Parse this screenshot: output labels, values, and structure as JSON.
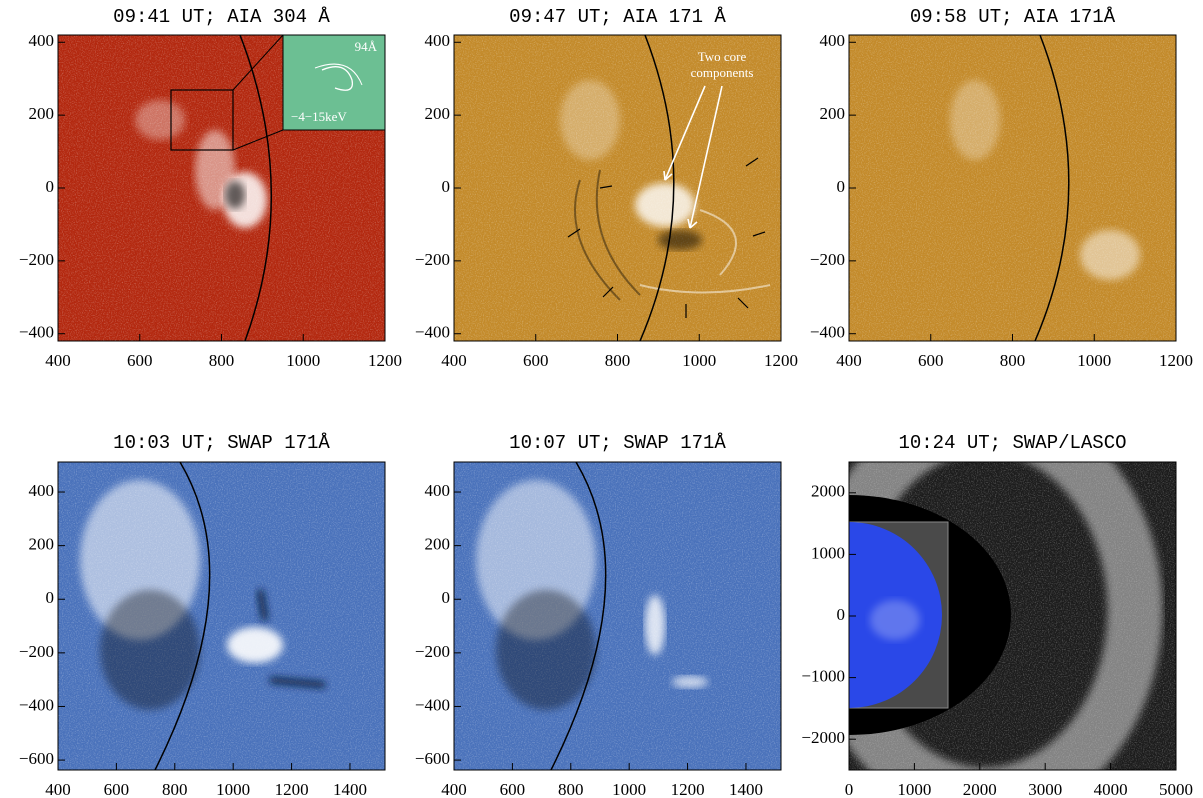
{
  "chart_data": [
    {
      "type": "image",
      "title": "09:41 UT; AIA 304 Å",
      "color": "#b3280f",
      "xlim": [
        400,
        1200
      ],
      "xticks": [
        400,
        600,
        800,
        1000,
        1200
      ],
      "ylim": [
        -420,
        420
      ],
      "yticks": [
        {
          "value": -400,
          "label": "−400"
        },
        {
          "value": -200,
          "label": "−200"
        },
        0,
        200,
        400
      ],
      "annotations": [
        "94Å",
        "−4−15keV"
      ]
    },
    {
      "type": "image",
      "title": "09:47 UT; AIA 171 Å",
      "color": "#c38a2a",
      "xlim": [
        400,
        1200
      ],
      "xticks": [
        400,
        600,
        800,
        1000,
        1200
      ],
      "ylim": [
        -420,
        420
      ],
      "yticks": [
        {
          "value": -400,
          "label": "−400"
        },
        {
          "value": -200,
          "label": "−200"
        },
        0,
        200,
        400
      ],
      "annotations": [
        "Two core",
        "components"
      ]
    },
    {
      "type": "image",
      "title": "09:58 UT; AIA 171Å",
      "color": "#c38a2a",
      "xlim": [
        400,
        1200
      ],
      "xticks": [
        400,
        600,
        800,
        1000,
        1200
      ],
      "ylim": [
        -420,
        420
      ],
      "yticks": [
        {
          "value": -400,
          "label": "−400"
        },
        {
          "value": -200,
          "label": "−200"
        },
        0,
        200,
        400
      ]
    },
    {
      "type": "image",
      "title": "10:03 UT; SWAP 171Å",
      "color": "#4a72bb",
      "xlim": [
        400,
        1520
      ],
      "xticks": [
        400,
        600,
        800,
        1000,
        1200,
        1400
      ],
      "ylim": [
        -637,
        512
      ],
      "yticks": [
        {
          "value": -600,
          "label": "−600"
        },
        {
          "value": -400,
          "label": "−400"
        },
        {
          "value": -200,
          "label": "−200"
        },
        0,
        200,
        400
      ]
    },
    {
      "type": "image",
      "title": "10:07 UT; SWAP 171Å",
      "color": "#4a72bb",
      "xlim": [
        400,
        1520
      ],
      "xticks": [
        400,
        600,
        800,
        1000,
        1200,
        1400
      ],
      "ylim": [
        -637,
        512
      ],
      "yticks": [
        {
          "value": -600,
          "label": "−600"
        },
        {
          "value": -400,
          "label": "−400"
        },
        {
          "value": -200,
          "label": "−200"
        },
        0,
        200,
        400
      ]
    },
    {
      "type": "image",
      "title": "10:24 UT;  SWAP/LASCO",
      "color": "#1c1c1c",
      "xlim": [
        0,
        5000
      ],
      "xticks": [
        0,
        1000,
        2000,
        3000,
        4000,
        5000
      ],
      "ylim": [
        -2500,
        2500
      ],
      "yticks": [
        {
          "value": -2000,
          "label": "−2000"
        },
        {
          "value": -1000,
          "label": "−1000"
        },
        0,
        1000,
        2000
      ]
    }
  ]
}
